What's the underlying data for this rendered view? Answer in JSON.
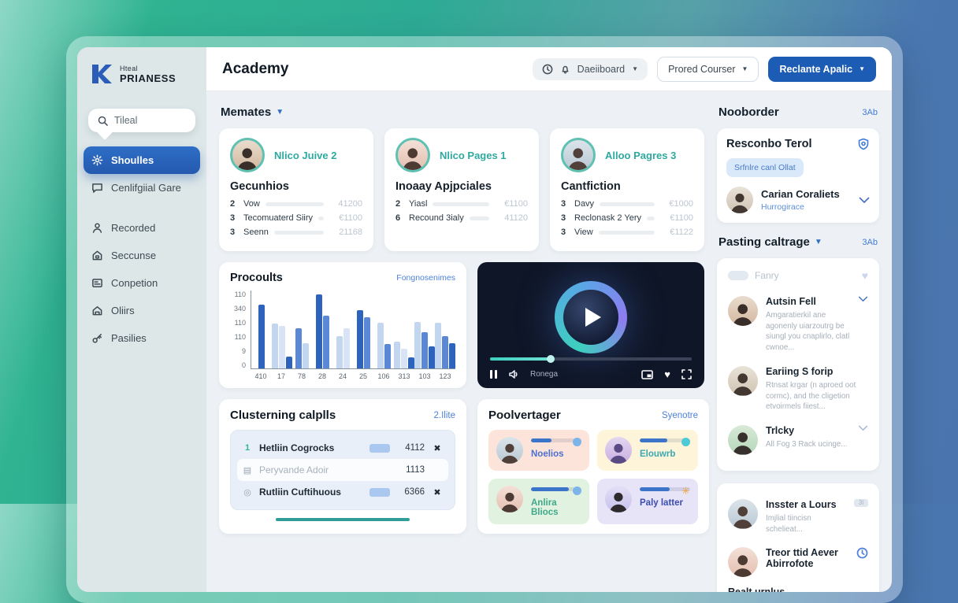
{
  "colors": {
    "accent_blue": "#1d5cb4",
    "active_nav": "#2e6ec6",
    "teal": "#2fb3a0",
    "link_blue": "#3f7ad6",
    "content_bg": "#edf1f5",
    "sidebar_bg": "#dde7e8"
  },
  "logo": {
    "line1": "Hteal",
    "line2": "PRIANESS"
  },
  "header": {
    "title": "Academy",
    "nav_pill_label": "Daeiiboard",
    "secondary_button": "Prored Courser",
    "primary_button": "Reclante Apalic"
  },
  "sidebar": {
    "search_text": "Tileal",
    "items": [
      {
        "label": "Shoulles"
      },
      {
        "label": "Cenlifgiial Gare"
      },
      {
        "label": "Recorded"
      },
      {
        "label": "Seccunse"
      },
      {
        "label": "Conpetion"
      },
      {
        "label": "Oliirs"
      },
      {
        "label": "Pasilies"
      }
    ]
  },
  "memates": {
    "title": "Memates",
    "cards": [
      {
        "name": "Nlico Juive 2",
        "title": "Gecunhios",
        "rows": [
          {
            "n": "2",
            "label": "Vow",
            "value": "41200",
            "pct": 38
          },
          {
            "n": "3",
            "label": "Tecomuaterd Siiry",
            "value": "€1100",
            "pct": 33
          },
          {
            "n": "3",
            "label": "Seenn",
            "value": "21168",
            "pct": 30
          }
        ]
      },
      {
        "name": "Nlico Pages 1",
        "title": "Inoaay Apjpciales",
        "rows": [
          {
            "n": "2",
            "label": "Yiasl",
            "value": "€1100",
            "pct": 33
          },
          {
            "n": "6",
            "label": "Recound 3ialy",
            "value": "41120",
            "pct": 28
          }
        ]
      },
      {
        "name": "Alloo Pagres 3",
        "title": "Cantfiction",
        "rows": [
          {
            "n": "3",
            "label": "Davy",
            "value": "€1000",
            "pct": 26
          },
          {
            "n": "3",
            "label": "Reclonask 2 Yery",
            "value": "€1100",
            "pct": 30
          },
          {
            "n": "3",
            "label": "View",
            "value": "€1122",
            "pct": 33
          }
        ]
      }
    ]
  },
  "chart_data": {
    "type": "bar",
    "title": "Procoults",
    "link_label": "Fongnosenimes",
    "ylim": [
      0,
      150
    ],
    "grid": false,
    "legend": "none",
    "yticks_top_to_bottom": [
      "110",
      "340",
      "110",
      "110",
      "9",
      "0"
    ],
    "categories": [
      "410",
      "17",
      "78",
      "28",
      "24",
      "25",
      "106",
      "313",
      "103",
      "123"
    ],
    "groups": [
      {
        "label": "410",
        "bars": [
          {
            "value": 122,
            "color": "#2d63bd"
          }
        ]
      },
      {
        "label": "17",
        "bars": [
          {
            "value": 87,
            "color": "#c3d6f0"
          },
          {
            "value": 82,
            "color": "#d8e4f6"
          },
          {
            "value": 23,
            "color": "#2d63bd"
          }
        ]
      },
      {
        "label": "78",
        "bars": [
          {
            "value": 77,
            "color": "#5a88d6"
          },
          {
            "value": 48,
            "color": "#c3d6f0"
          }
        ]
      },
      {
        "label": "28",
        "bars": [
          {
            "value": 143,
            "color": "#2d63bd"
          },
          {
            "value": 101,
            "color": "#5a88d6"
          }
        ]
      },
      {
        "label": "24",
        "bars": [
          {
            "value": 62,
            "color": "#c3d6f0"
          },
          {
            "value": 78,
            "color": "#d8e4f6"
          }
        ]
      },
      {
        "label": "25",
        "bars": [
          {
            "value": 112,
            "color": "#2d63bd"
          },
          {
            "value": 99,
            "color": "#5a88d6"
          }
        ]
      },
      {
        "label": "106",
        "bars": [
          {
            "value": 88,
            "color": "#c3d6f0"
          },
          {
            "value": 47,
            "color": "#5a88d6"
          }
        ]
      },
      {
        "label": "313",
        "bars": [
          {
            "value": 52,
            "color": "#c3d6f0"
          },
          {
            "value": 38,
            "color": "#d8e4f6"
          },
          {
            "value": 21,
            "color": "#2d63bd"
          }
        ]
      },
      {
        "label": "103",
        "bars": [
          {
            "value": 89,
            "color": "#c3d6f0"
          },
          {
            "value": 69,
            "color": "#5a88d6"
          },
          {
            "value": 42,
            "color": "#2d63bd"
          }
        ]
      },
      {
        "label": "123",
        "bars": [
          {
            "value": 88,
            "color": "#c3d6f0"
          },
          {
            "value": 62,
            "color": "#5a88d6"
          },
          {
            "value": 48,
            "color": "#2d63bd"
          }
        ]
      }
    ]
  },
  "video": {
    "label": "Ronega",
    "progress_pct": 30
  },
  "table": {
    "title": "Clusterning calplls",
    "link": "2.Ilite",
    "rows": [
      {
        "marker": "1",
        "label": "Hetliin Cogrocks",
        "value": "4112",
        "action": "✖"
      },
      {
        "marker": "▤",
        "label": "Peryvande Adoir",
        "value": "1113",
        "action": ""
      },
      {
        "marker": "◎",
        "label": "Rutliin Cuftihuous",
        "value": "6366",
        "action": "✖"
      }
    ]
  },
  "pool": {
    "title": "Poolvertager",
    "link": "Syenotre",
    "tiles": [
      {
        "name": "Noelios",
        "name_color": "#4a6fd0",
        "bg": "#fde4da",
        "icon_color": "#7db4ea",
        "icon": "dot",
        "pct": 40
      },
      {
        "name": "Elouwrb",
        "name_color": "#3aa8b0",
        "bg": "#fdf4da",
        "icon_color": "#4ec9d6",
        "icon": "dot",
        "pct": 55
      },
      {
        "name": "Anlira Bliocs",
        "name_color": "#3da98a",
        "bg": "#e2f2e0",
        "icon_color": "#7db4ea",
        "icon": "dot",
        "pct": 75
      },
      {
        "name": "Paly latter",
        "name_color": "#3b4db0",
        "bg": "#e7e4f8",
        "icon_color": "#f0a53c",
        "icon": "✳",
        "pct": 60
      }
    ]
  },
  "right_panel": {
    "section1": {
      "title": "Nooborder",
      "link": "3Ab",
      "card": {
        "title": "Resconbo Terol",
        "pill": "Srfnlre canl Ollat",
        "person": "Carian Coraliets",
        "person_sub": "Hurrogirace"
      }
    },
    "section2": {
      "title": "Pasting caltrage",
      "link": "3Ab",
      "muted_label": "Fanry",
      "items": [
        {
          "name": "Autsin Fell",
          "desc": "Amgaratierkil ane agonenly uiarzoutrg be siungl you cnaplirlo, clatl cwnoe..."
        },
        {
          "name": "Eariing S forip",
          "desc": "Rtnsat krgar (n aproed oot cormc), and the cligetion etvoirmels fiiest..."
        },
        {
          "name": "Trlcky",
          "desc": "All Fog 3 Rack ucinge..."
        }
      ],
      "items2": [
        {
          "name": "Insster a Lours",
          "desc": "Imjlial tiincisn schelieat...",
          "badge": "3l"
        },
        {
          "name": "Treor ttid Aever Abirrofote",
          "desc": ""
        }
      ],
      "partial_name": "Realt urnlus"
    }
  }
}
